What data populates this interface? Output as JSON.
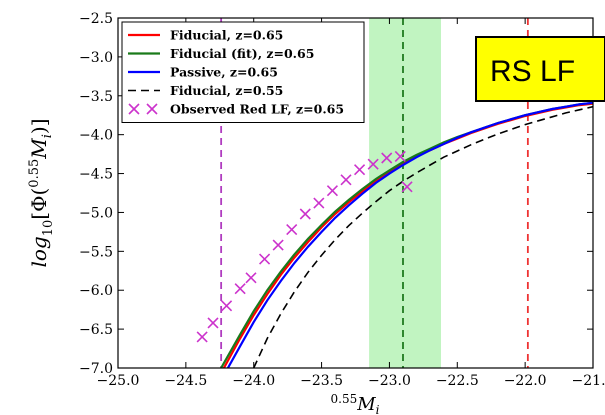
{
  "chart_data": {
    "type": "line",
    "xlabel": "0.55M_i",
    "ylabel": "log_10[Φ(0.55M_i)]",
    "xlim": [
      -25.0,
      -21.5
    ],
    "ylim": [
      -7.0,
      -2.5
    ],
    "xticks": [
      "−25.0",
      "−24.5",
      "−24.0",
      "−23.5",
      "−23.0",
      "−22.5",
      "−22.0",
      "−21.5"
    ],
    "yticks": [
      "−2.5",
      "−3.0",
      "−3.5",
      "−4.0",
      "−4.5",
      "−5.0",
      "−5.5",
      "−6.0",
      "−6.5",
      "−7.0"
    ],
    "grid": false,
    "legend_position": "top-left",
    "badge": {
      "text": "RS LF",
      "background": "#ffff00"
    },
    "bands": [
      {
        "name": "shaded-range",
        "x0": -23.15,
        "x1": -22.62,
        "color": "#b6f2b6"
      }
    ],
    "vlines": [
      {
        "x": -24.24,
        "color": "#b03cc0",
        "style": "dashed"
      },
      {
        "x": -22.9,
        "color": "#1f7a1f",
        "style": "dashed"
      },
      {
        "x": -21.98,
        "color": "#ee3333",
        "style": "dashed"
      }
    ],
    "series": [
      {
        "name": "Fiducial, z=0.65",
        "color": "#ff0000",
        "style": "solid",
        "x": [
          -24.22,
          -24.1,
          -24.0,
          -23.9,
          -23.8,
          -23.7,
          -23.6,
          -23.5,
          -23.4,
          -23.3,
          -23.2,
          -23.1,
          -23.0,
          -22.9,
          -22.8,
          -22.7,
          -22.6,
          -22.5,
          -22.4,
          -22.3,
          -22.2,
          -22.1,
          -22.0,
          -21.9,
          -21.8,
          -21.7,
          -21.6,
          -21.5
        ],
        "y": [
          -7.0,
          -6.62,
          -6.32,
          -6.05,
          -5.8,
          -5.58,
          -5.38,
          -5.19,
          -5.02,
          -4.87,
          -4.73,
          -4.6,
          -4.48,
          -4.38,
          -4.28,
          -4.2,
          -4.12,
          -4.05,
          -3.98,
          -3.92,
          -3.86,
          -3.81,
          -3.76,
          -3.72,
          -3.68,
          -3.65,
          -3.62,
          -3.6
        ]
      },
      {
        "name": "Fiducial (fit), z=0.65",
        "color": "#1a7a1a",
        "style": "solid",
        "x": [
          -24.24,
          -24.1,
          -24.0,
          -23.9,
          -23.8,
          -23.7,
          -23.6,
          -23.5,
          -23.4,
          -23.3,
          -23.2,
          -23.1,
          -23.0,
          -22.9,
          -22.8,
          -22.7,
          -22.6,
          -22.5,
          -22.4,
          -22.3,
          -22.2,
          -22.1,
          -22.0,
          -21.9,
          -21.8,
          -21.7,
          -21.6,
          -21.5
        ],
        "y": [
          -7.0,
          -6.57,
          -6.27,
          -6.0,
          -5.76,
          -5.54,
          -5.34,
          -5.16,
          -4.99,
          -4.84,
          -4.7,
          -4.57,
          -4.46,
          -4.35,
          -4.26,
          -4.18,
          -4.1,
          -4.03,
          -3.97,
          -3.91,
          -3.85,
          -3.8,
          -3.75,
          -3.71,
          -3.67,
          -3.64,
          -3.61,
          -3.59
        ]
      },
      {
        "name": "Passive, z=0.65",
        "color": "#0000ff",
        "style": "solid",
        "x": [
          -24.19,
          -24.1,
          -24.0,
          -23.9,
          -23.8,
          -23.7,
          -23.6,
          -23.5,
          -23.4,
          -23.3,
          -23.2,
          -23.1,
          -23.0,
          -22.9,
          -22.8,
          -22.7,
          -22.6,
          -22.5,
          -22.4,
          -22.3,
          -22.2,
          -22.1,
          -22.0,
          -21.9,
          -21.8,
          -21.7,
          -21.6,
          -21.5
        ],
        "y": [
          -7.0,
          -6.72,
          -6.41,
          -6.13,
          -5.88,
          -5.65,
          -5.44,
          -5.25,
          -5.07,
          -4.91,
          -4.76,
          -4.62,
          -4.5,
          -4.39,
          -4.29,
          -4.2,
          -4.12,
          -4.04,
          -3.97,
          -3.91,
          -3.85,
          -3.8,
          -3.75,
          -3.71,
          -3.67,
          -3.64,
          -3.61,
          -3.59
        ]
      },
      {
        "name": "Fiducial, z=0.55",
        "color": "#000000",
        "style": "dashed",
        "x": [
          -24.0,
          -23.9,
          -23.8,
          -23.7,
          -23.6,
          -23.5,
          -23.4,
          -23.3,
          -23.2,
          -23.1,
          -23.0,
          -22.9,
          -22.8,
          -22.7,
          -22.6,
          -22.5,
          -22.4,
          -22.3,
          -22.2,
          -22.1,
          -22.0,
          -21.9,
          -21.8,
          -21.7,
          -21.6,
          -21.5
        ],
        "y": [
          -7.0,
          -6.62,
          -6.3,
          -6.02,
          -5.77,
          -5.55,
          -5.35,
          -5.17,
          -5.01,
          -4.86,
          -4.72,
          -4.6,
          -4.49,
          -4.39,
          -4.29,
          -4.21,
          -4.13,
          -4.06,
          -3.99,
          -3.93,
          -3.87,
          -3.82,
          -3.77,
          -3.72,
          -3.68,
          -3.64
        ]
      },
      {
        "name": "Observed Red LF, z=0.65",
        "color": "#cc33cc",
        "marker": "x",
        "style": "none",
        "x": [
          -24.38,
          -24.3,
          -24.2,
          -24.1,
          -24.02,
          -23.92,
          -23.82,
          -23.72,
          -23.62,
          -23.52,
          -23.42,
          -23.32,
          -23.22,
          -23.12,
          -23.02,
          -22.92,
          -22.87
        ],
        "y": [
          -6.6,
          -6.42,
          -6.2,
          -5.98,
          -5.84,
          -5.6,
          -5.42,
          -5.22,
          -5.02,
          -4.88,
          -4.72,
          -4.58,
          -4.45,
          -4.38,
          -4.3,
          -4.28,
          -4.67
        ]
      }
    ]
  }
}
